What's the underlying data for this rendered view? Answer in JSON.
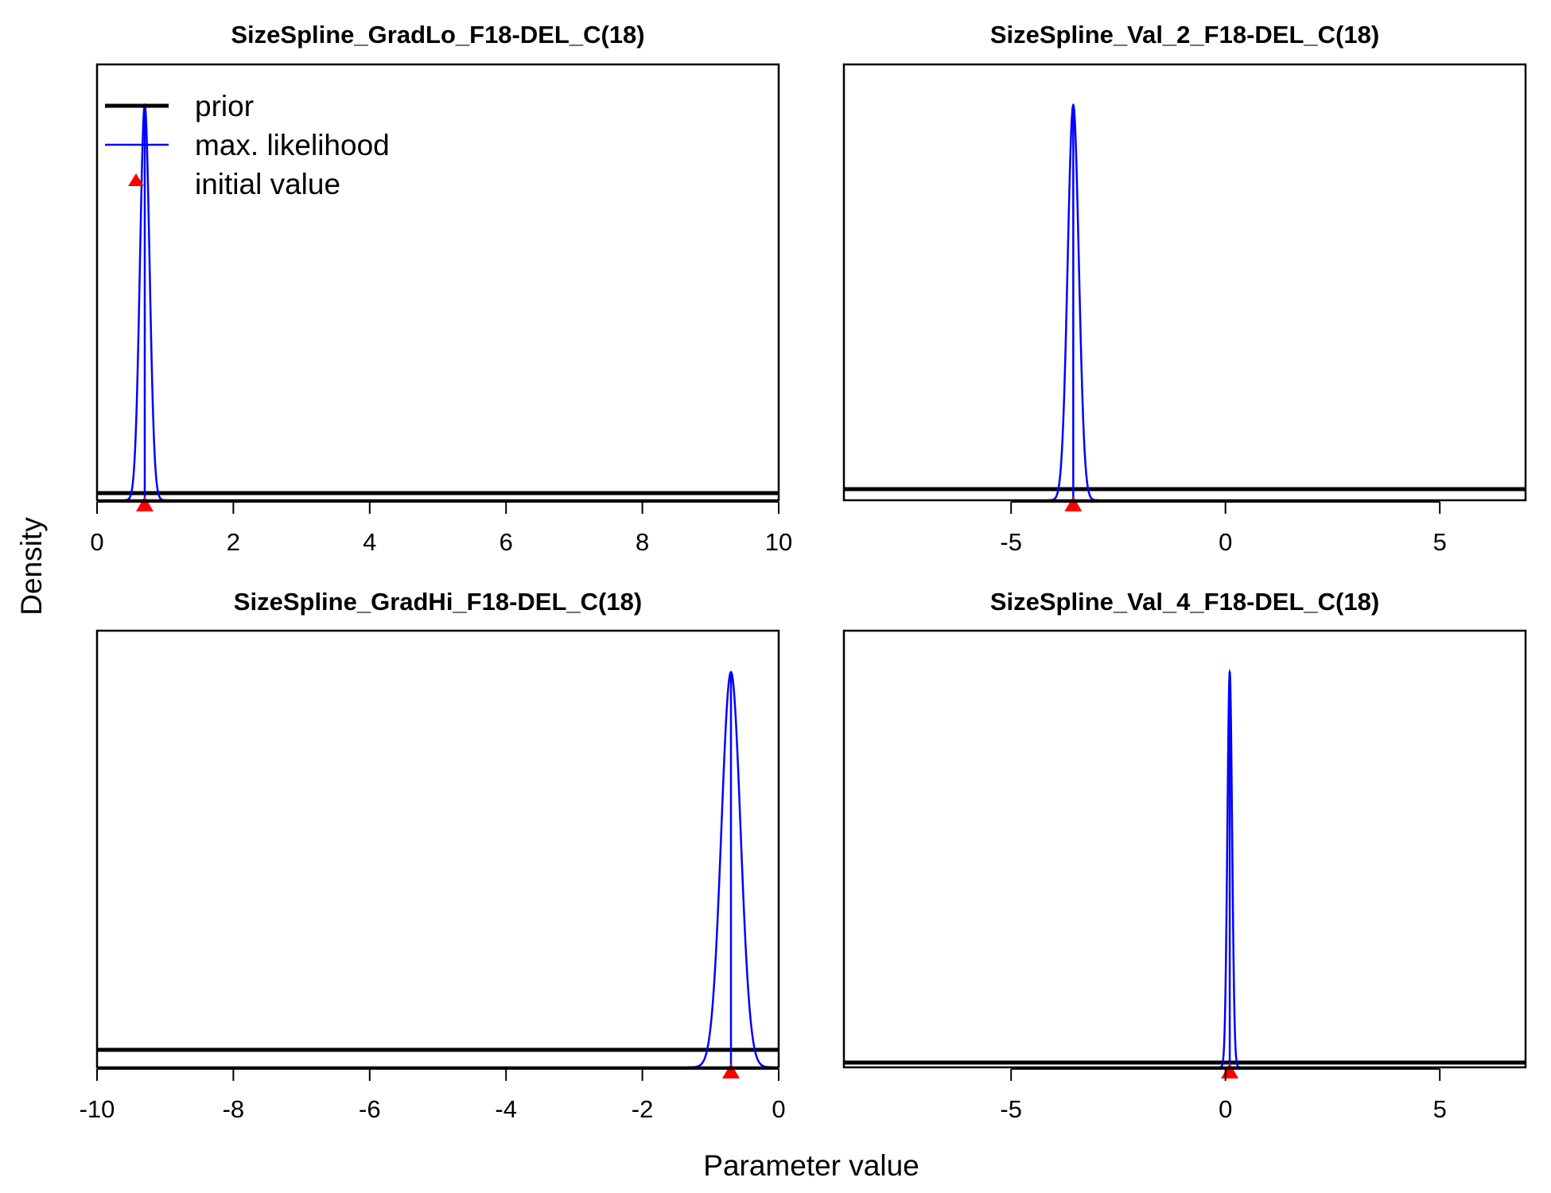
{
  "figure": {
    "ylabel": "Density",
    "xlabel": "Parameter value"
  },
  "legend": {
    "entries": [
      {
        "label": "prior",
        "kind": "line",
        "color": "#000000"
      },
      {
        "label": "max. likelihood",
        "kind": "line",
        "color": "#0000ff"
      },
      {
        "label": "initial value",
        "kind": "triangle",
        "color": "#ff0000"
      }
    ]
  },
  "colors": {
    "prior": "#000000",
    "max_likelihood": "#0000ff",
    "initial_value": "#ff0000"
  },
  "chart_data": [
    {
      "type": "line",
      "title": "SizeSpline_GradLo_F18-DEL_C(18)",
      "xlim": [
        0,
        10
      ],
      "x_ticks": [
        0,
        2,
        4,
        6,
        8,
        10
      ],
      "x_tick_labels": [
        "0",
        "2",
        "4",
        "6",
        "8",
        "10"
      ],
      "prior": {
        "type": "uniform"
      },
      "max_likelihood": {
        "type": "normal",
        "mean": 0.7,
        "sd": 0.07
      },
      "initial_value": 0.7,
      "legend": "top-left"
    },
    {
      "type": "line",
      "title": "SizeSpline_Val_2_F18-DEL_C(18)",
      "xlim": [
        -8.9,
        7
      ],
      "x_ticks": [
        -5,
        0,
        5
      ],
      "x_tick_labels": [
        "-5",
        "0",
        "5"
      ],
      "prior": {
        "type": "uniform"
      },
      "max_likelihood": {
        "type": "normal",
        "mean": -3.55,
        "sd": 0.13
      },
      "initial_value": -3.55
    },
    {
      "type": "line",
      "title": "SizeSpline_GradHi_F18-DEL_C(18)",
      "xlim": [
        -10,
        0
      ],
      "x_ticks": [
        -10,
        -8,
        -6,
        -4,
        -2,
        0
      ],
      "x_tick_labels": [
        "-10",
        "-8",
        "-6",
        "-4",
        "-2",
        "0"
      ],
      "prior": {
        "type": "uniform"
      },
      "max_likelihood": {
        "type": "normal",
        "mean": -0.7,
        "sd": 0.14
      },
      "initial_value": -0.7
    },
    {
      "type": "line",
      "title": "SizeSpline_Val_4_F18-DEL_C(18)",
      "xlim": [
        -8.9,
        7
      ],
      "x_ticks": [
        -5,
        0,
        5
      ],
      "x_tick_labels": [
        "-5",
        "0",
        "5"
      ],
      "prior": {
        "type": "uniform"
      },
      "max_likelihood": {
        "type": "normal",
        "mean": 0.1,
        "sd": 0.055
      },
      "initial_value": 0.1
    }
  ]
}
